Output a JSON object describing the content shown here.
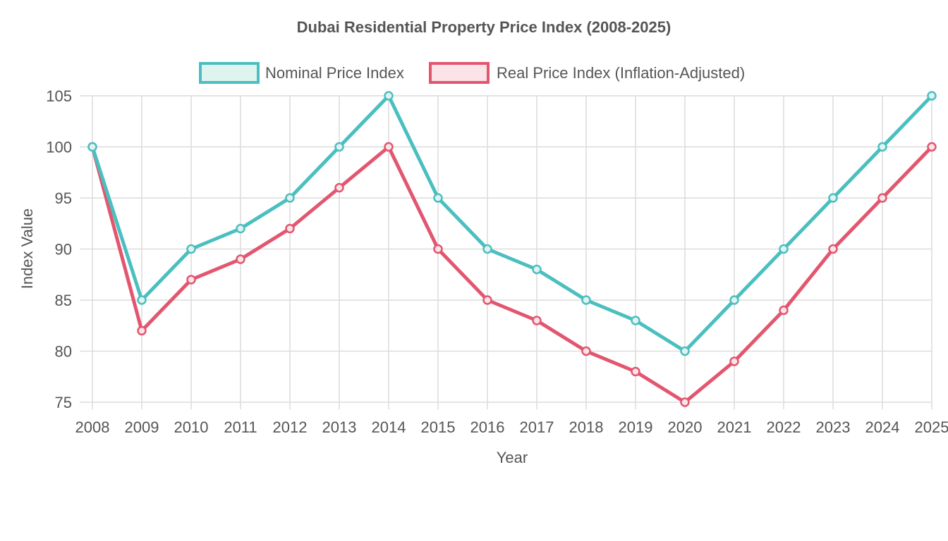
{
  "chart_data": {
    "type": "line",
    "title": "Dubai Residential Property Price Index (2008-2025)",
    "xlabel": "Year",
    "ylabel": "Index Value",
    "categories": [
      "2008",
      "2009",
      "2010",
      "2011",
      "2012",
      "2013",
      "2014",
      "2015",
      "2016",
      "2017",
      "2018",
      "2019",
      "2020",
      "2021",
      "2022",
      "2023",
      "2024",
      "2025"
    ],
    "ylim": [
      75,
      105
    ],
    "yticks": [
      "105",
      "100",
      "95",
      "90",
      "85",
      "80",
      "75"
    ],
    "grid": true,
    "legend_position": "top-center",
    "series": [
      {
        "name": "Nominal Price Index",
        "color": "#4bbfc0",
        "fill": "#dff3ef",
        "values": [
          100,
          85,
          90,
          92,
          95,
          100,
          105,
          95,
          90,
          88,
          85,
          83,
          80,
          85,
          90,
          95,
          100,
          105
        ]
      },
      {
        "name": "Real Price Index (Inflation-Adjusted)",
        "color": "#e2566f",
        "fill": "#fbe3e8",
        "values": [
          100,
          82,
          87,
          89,
          92,
          96,
          100,
          90,
          85,
          83,
          80,
          78,
          75,
          79,
          84,
          90,
          95,
          100
        ]
      }
    ]
  }
}
